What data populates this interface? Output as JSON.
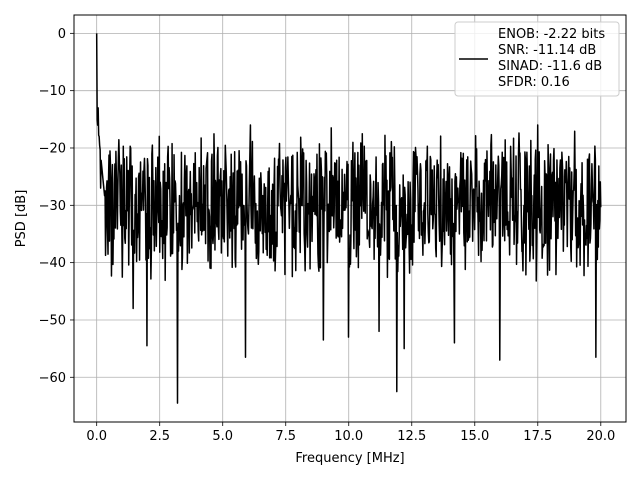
{
  "chart_data": {
    "type": "line",
    "title": "",
    "xlabel": "Frequency [MHz]",
    "ylabel": "PSD [dB]",
    "xlim": [
      -0.9,
      21.0
    ],
    "ylim": [
      -67.8,
      3.2
    ],
    "xticks": [
      0.0,
      2.5,
      5.0,
      7.5,
      10.0,
      12.5,
      15.0,
      17.5,
      20.0
    ],
    "xtick_labels": [
      "0.0",
      "2.5",
      "5.0",
      "7.5",
      "10.0",
      "12.5",
      "15.0",
      "17.5",
      "20.0"
    ],
    "yticks": [
      0,
      -10,
      -20,
      -30,
      -40,
      -50,
      -60
    ],
    "ytick_labels": [
      "0",
      "−10",
      "−20",
      "−30",
      "−40",
      "−50",
      "−60"
    ],
    "grid": true,
    "legend_position": "top-right",
    "series": [
      {
        "name": "ENOB: -2.22 bits",
        "color": "#000000",
        "x_range": [
          0.0,
          20.0
        ],
        "sample_count": 1024,
        "noise_floor_db": -30,
        "peak_db": 0,
        "notable_points": [
          {
            "x": 0.0,
            "y": 0
          },
          {
            "x": 0.05,
            "y": -13
          },
          {
            "x": 0.1,
            "y": -18
          },
          {
            "x": 0.15,
            "y": -27
          },
          {
            "x": 1.45,
            "y": -48
          },
          {
            "x": 2.0,
            "y": -54.5
          },
          {
            "x": 3.2,
            "y": -64.5
          },
          {
            "x": 5.9,
            "y": -56.5
          },
          {
            "x": 6.1,
            "y": -16
          },
          {
            "x": 9.0,
            "y": -53.5
          },
          {
            "x": 9.3,
            "y": -16.5
          },
          {
            "x": 10.0,
            "y": -53
          },
          {
            "x": 11.2,
            "y": -52
          },
          {
            "x": 11.9,
            "y": -62.5
          },
          {
            "x": 12.2,
            "y": -55
          },
          {
            "x": 14.2,
            "y": -54
          },
          {
            "x": 16.0,
            "y": -57
          },
          {
            "x": 17.5,
            "y": -16
          },
          {
            "x": 19.8,
            "y": -56.5
          }
        ]
      }
    ],
    "legend_lines": [
      "ENOB: -2.22 bits",
      "SNR: -11.14 dB",
      "SINAD: -11.6 dB",
      "SFDR: 0.16"
    ]
  }
}
